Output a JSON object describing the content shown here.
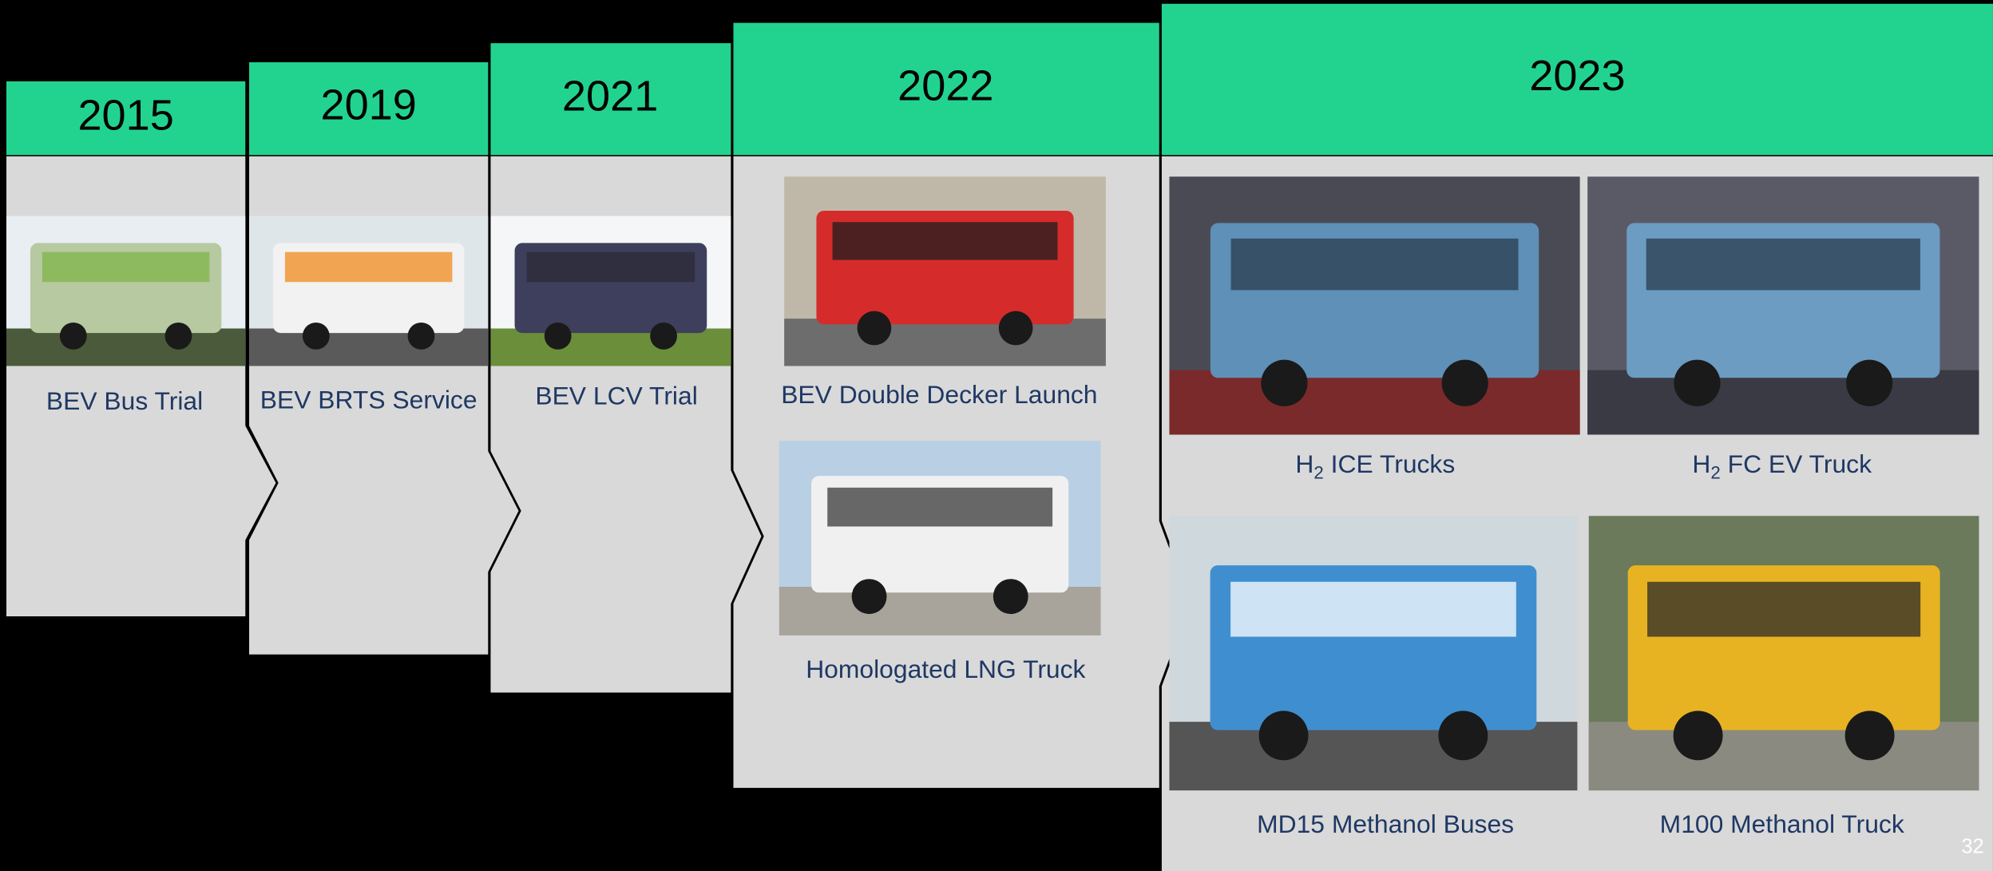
{
  "columns": [
    {
      "year": "2015",
      "items": [
        {
          "label": "BEV Bus Trial"
        }
      ]
    },
    {
      "year": "2019",
      "items": [
        {
          "label": "BEV BRTS Service"
        }
      ]
    },
    {
      "year": "2021",
      "items": [
        {
          "label": "BEV LCV Trial"
        }
      ]
    },
    {
      "year": "2022",
      "items": [
        {
          "label": "BEV Double Decker Launch"
        },
        {
          "label": "Homologated LNG Truck"
        }
      ]
    },
    {
      "year": "2023",
      "items": [
        {
          "label": {
            "base": "H",
            "sub": "2",
            "rest": " ICE Trucks"
          }
        },
        {
          "label": {
            "base": "H",
            "sub": "2",
            "rest": " FC EV Truck"
          }
        },
        {
          "label": "MD15 Methanol Buses"
        },
        {
          "label": "M100 Methanol Truck"
        }
      ]
    }
  ],
  "page_number": "32"
}
